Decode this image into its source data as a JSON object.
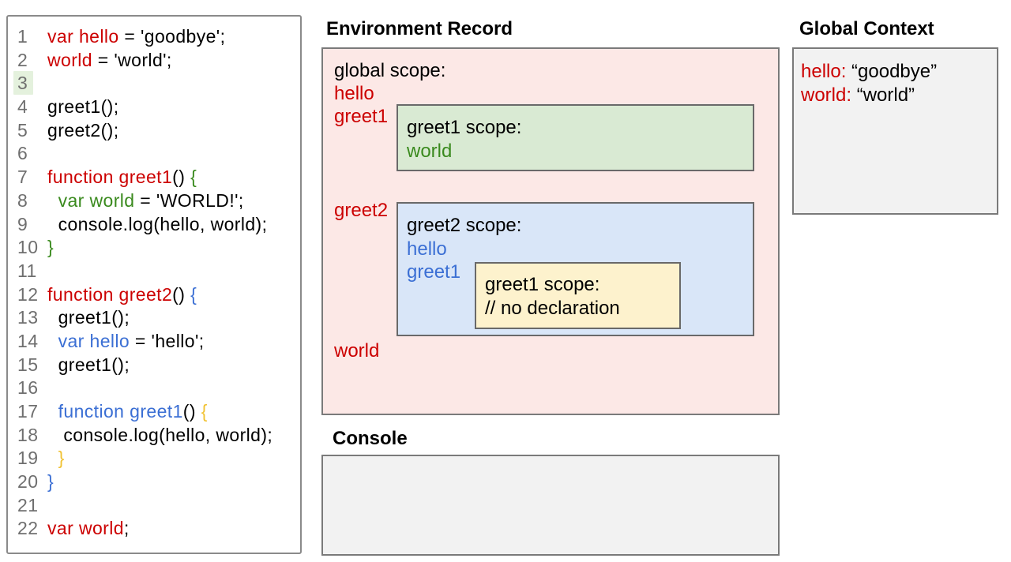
{
  "colors": {
    "red": "#cc0000",
    "green": "#3a8a1e",
    "blue": "#3b6fd4",
    "gold": "#f1c232",
    "black": "#000000",
    "line_number_gray": "#6f6f6f",
    "pink_bg": "#fce8e6",
    "green_bg": "#d9ead3",
    "blue_bg": "#d9e6f8",
    "yellow_bg": "#fdf2cd",
    "gray_bg": "#f2f2f2",
    "line_highlight_bg": "#e4f1dd"
  },
  "code_panel": {
    "highlighted_line": 3,
    "lines": [
      {
        "n": 1,
        "segments": [
          {
            "t": "var hello",
            "c": "red"
          },
          {
            "t": " = 'goodbye';",
            "c": "black"
          }
        ]
      },
      {
        "n": 2,
        "segments": [
          {
            "t": "world",
            "c": "red"
          },
          {
            "t": " = 'world';",
            "c": "black"
          }
        ]
      },
      {
        "n": 3,
        "segments": []
      },
      {
        "n": 4,
        "segments": [
          {
            "t": "greet1();",
            "c": "black"
          }
        ]
      },
      {
        "n": 5,
        "segments": [
          {
            "t": "greet2();",
            "c": "black"
          }
        ]
      },
      {
        "n": 6,
        "segments": []
      },
      {
        "n": 7,
        "segments": [
          {
            "t": "function greet1",
            "c": "red"
          },
          {
            "t": "() ",
            "c": "black"
          },
          {
            "t": "{",
            "c": "green"
          }
        ]
      },
      {
        "n": 8,
        "segments": [
          {
            "t": "  ",
            "c": "black"
          },
          {
            "t": "var world",
            "c": "green"
          },
          {
            "t": " = 'WORLD!';",
            "c": "black"
          }
        ]
      },
      {
        "n": 9,
        "segments": [
          {
            "t": "  console.log(hello, world);",
            "c": "black"
          }
        ]
      },
      {
        "n": 10,
        "segments": [
          {
            "t": "}",
            "c": "green"
          }
        ]
      },
      {
        "n": 11,
        "segments": []
      },
      {
        "n": 12,
        "segments": [
          {
            "t": "function greet2",
            "c": "red"
          },
          {
            "t": "() ",
            "c": "black"
          },
          {
            "t": "{",
            "c": "blue"
          }
        ]
      },
      {
        "n": 13,
        "segments": [
          {
            "t": "  greet1();",
            "c": "black"
          }
        ]
      },
      {
        "n": 14,
        "segments": [
          {
            "t": "  ",
            "c": "black"
          },
          {
            "t": "var hello",
            "c": "blue"
          },
          {
            "t": " = 'hello';",
            "c": "black"
          }
        ]
      },
      {
        "n": 15,
        "segments": [
          {
            "t": "  greet1();",
            "c": "black"
          }
        ]
      },
      {
        "n": 16,
        "segments": []
      },
      {
        "n": 17,
        "segments": [
          {
            "t": "  ",
            "c": "black"
          },
          {
            "t": "function greet1",
            "c": "blue"
          },
          {
            "t": "() ",
            "c": "black"
          },
          {
            "t": "{",
            "c": "gold"
          }
        ]
      },
      {
        "n": 18,
        "segments": [
          {
            "t": "   console.log(hello, world);",
            "c": "black"
          }
        ]
      },
      {
        "n": 19,
        "segments": [
          {
            "t": "  ",
            "c": "black"
          },
          {
            "t": "}",
            "c": "gold"
          }
        ]
      },
      {
        "n": 20,
        "segments": [
          {
            "t": "}",
            "c": "blue"
          }
        ]
      },
      {
        "n": 21,
        "segments": []
      },
      {
        "n": 22,
        "segments": [
          {
            "t": "var world",
            "c": "red"
          },
          {
            "t": ";",
            "c": "black"
          }
        ]
      }
    ]
  },
  "environment_record": {
    "title": "Environment Record",
    "global_scope_label": "global scope:",
    "var_hello": "hello",
    "var_greet1": "greet1",
    "var_greet2": "greet2",
    "var_world": "world",
    "greet1_scope": {
      "label": "greet1 scope:",
      "var_world": "world"
    },
    "greet2_scope": {
      "label": "greet2 scope:",
      "var_hello": "hello",
      "var_greet1": "greet1",
      "greet1_scope": {
        "label": "greet1 scope:",
        "comment": "// no declaration"
      }
    }
  },
  "global_context": {
    "title": "Global Context",
    "entries": [
      {
        "name": "hello:",
        "value": " “goodbye”"
      },
      {
        "name": "world:",
        "value": " “world”"
      }
    ]
  },
  "console_panel": {
    "title": "Console"
  }
}
